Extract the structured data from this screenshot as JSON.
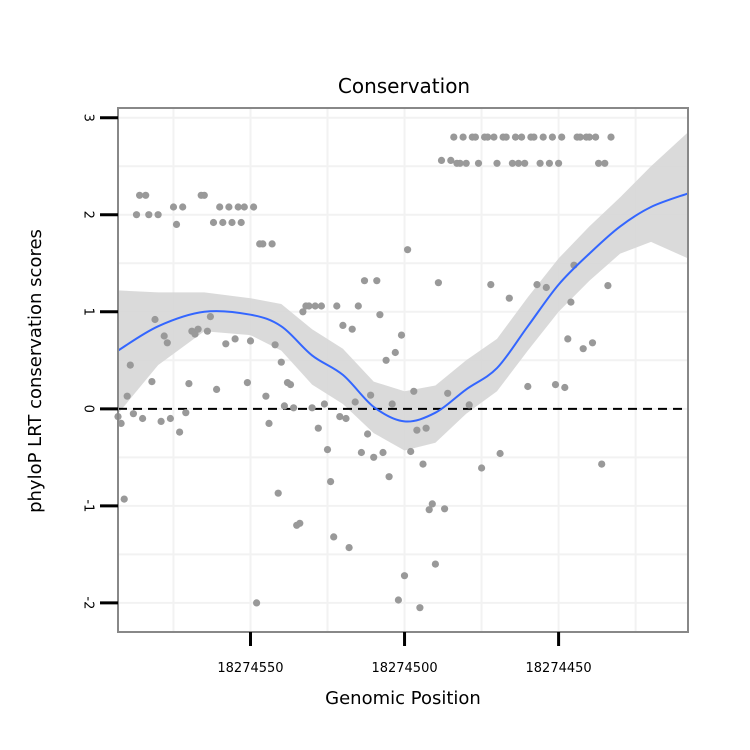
{
  "chart_data": {
    "type": "scatter",
    "title": "Conservation",
    "xlabel": "Genomic Position",
    "ylabel": "phyloP LRT conservation scores",
    "x_reversed": true,
    "xlim": [
      18274593,
      18274408
    ],
    "ylim": [
      -2.3,
      3.1
    ],
    "x_ticks": [
      {
        "value": 18274550,
        "label": "18274550"
      },
      {
        "value": 18274500,
        "label": "18274500"
      },
      {
        "value": 18274450,
        "label": "18274450"
      }
    ],
    "y_ticks": [
      {
        "value": -2,
        "label": "-2"
      },
      {
        "value": -1,
        "label": "-1"
      },
      {
        "value": 0,
        "label": "0"
      },
      {
        "value": 1,
        "label": "1"
      },
      {
        "value": 2,
        "label": "2"
      },
      {
        "value": 3,
        "label": "3"
      }
    ],
    "grid": true,
    "reference_line": {
      "y": 0,
      "style": "dashed"
    },
    "colors": {
      "points": "#999999",
      "smooth": "#3366FF",
      "ribbon": "#d6d6d6",
      "panel_border": "#888888",
      "grid": "#f2f2f2"
    },
    "points": [
      [
        18274593,
        -0.08
      ],
      [
        18274592,
        -0.15
      ],
      [
        18274591,
        -0.93
      ],
      [
        18274590,
        0.13
      ],
      [
        18274589,
        0.45
      ],
      [
        18274588,
        -0.05
      ],
      [
        18274587,
        2.0
      ],
      [
        18274586,
        2.2
      ],
      [
        18274585,
        -0.1
      ],
      [
        18274584,
        2.2
      ],
      [
        18274583,
        2.0
      ],
      [
        18274582,
        0.28
      ],
      [
        18274581,
        0.92
      ],
      [
        18274580,
        2.0
      ],
      [
        18274579,
        -0.13
      ],
      [
        18274578,
        0.75
      ],
      [
        18274577,
        0.68
      ],
      [
        18274576,
        -0.1
      ],
      [
        18274575,
        2.08
      ],
      [
        18274574,
        1.9
      ],
      [
        18274573,
        -0.24
      ],
      [
        18274572,
        2.08
      ],
      [
        18274571,
        -0.04
      ],
      [
        18274570,
        0.26
      ],
      [
        18274569,
        0.8
      ],
      [
        18274568,
        0.77
      ],
      [
        18274567,
        0.82
      ],
      [
        18274566,
        2.2
      ],
      [
        18274565,
        2.2
      ],
      [
        18274564,
        0.8
      ],
      [
        18274563,
        0.95
      ],
      [
        18274562,
        1.92
      ],
      [
        18274561,
        0.2
      ],
      [
        18274560,
        2.08
      ],
      [
        18274559,
        1.92
      ],
      [
        18274558,
        0.67
      ],
      [
        18274557,
        2.08
      ],
      [
        18274556,
        1.92
      ],
      [
        18274555,
        0.72
      ],
      [
        18274554,
        2.08
      ],
      [
        18274553,
        1.92
      ],
      [
        18274552,
        2.08
      ],
      [
        18274551,
        0.27
      ],
      [
        18274550,
        0.7
      ],
      [
        18274549,
        2.08
      ],
      [
        18274548,
        -2.0
      ],
      [
        18274547,
        1.7
      ],
      [
        18274546,
        1.7
      ],
      [
        18274545,
        0.13
      ],
      [
        18274544,
        -0.15
      ],
      [
        18274543,
        1.7
      ],
      [
        18274542,
        0.66
      ],
      [
        18274541,
        -0.87
      ],
      [
        18274540,
        0.48
      ],
      [
        18274539,
        0.03
      ],
      [
        18274538,
        0.27
      ],
      [
        18274537,
        0.25
      ],
      [
        18274536,
        0.01
      ],
      [
        18274535,
        -1.2
      ],
      [
        18274534,
        -1.18
      ],
      [
        18274533,
        1.0
      ],
      [
        18274532,
        1.06
      ],
      [
        18274531,
        1.06
      ],
      [
        18274530,
        0.01
      ],
      [
        18274529,
        1.06
      ],
      [
        18274528,
        -0.2
      ],
      [
        18274527,
        1.06
      ],
      [
        18274526,
        0.05
      ],
      [
        18274525,
        -0.42
      ],
      [
        18274524,
        -0.75
      ],
      [
        18274523,
        -1.32
      ],
      [
        18274522,
        1.06
      ],
      [
        18274521,
        -0.08
      ],
      [
        18274520,
        0.86
      ],
      [
        18274519,
        -0.1
      ],
      [
        18274518,
        -1.43
      ],
      [
        18274517,
        0.82
      ],
      [
        18274516,
        0.07
      ],
      [
        18274515,
        1.06
      ],
      [
        18274514,
        -0.45
      ],
      [
        18274513,
        1.32
      ],
      [
        18274512,
        -0.26
      ],
      [
        18274511,
        0.14
      ],
      [
        18274510,
        -0.5
      ],
      [
        18274509,
        1.32
      ],
      [
        18274508,
        0.97
      ],
      [
        18274507,
        -0.45
      ],
      [
        18274506,
        0.5
      ],
      [
        18274505,
        -0.7
      ],
      [
        18274504,
        0.05
      ],
      [
        18274503,
        0.58
      ],
      [
        18274502,
        -1.97
      ],
      [
        18274501,
        0.76
      ],
      [
        18274500,
        -1.72
      ],
      [
        18274499,
        1.64
      ],
      [
        18274498,
        -0.44
      ],
      [
        18274497,
        0.18
      ],
      [
        18274496,
        -0.22
      ],
      [
        18274495,
        -2.05
      ],
      [
        18274494,
        -0.57
      ],
      [
        18274493,
        -0.2
      ],
      [
        18274492,
        -1.04
      ],
      [
        18274491,
        -0.98
      ],
      [
        18274490,
        -1.6
      ],
      [
        18274489,
        1.3
      ],
      [
        18274488,
        2.56
      ],
      [
        18274487,
        -1.03
      ],
      [
        18274486,
        0.16
      ],
      [
        18274485,
        2.56
      ],
      [
        18274484,
        2.8
      ],
      [
        18274483,
        2.53
      ],
      [
        18274482,
        2.53
      ],
      [
        18274481,
        2.8
      ],
      [
        18274480,
        2.53
      ],
      [
        18274479,
        0.04
      ],
      [
        18274478,
        2.8
      ],
      [
        18274477,
        2.8
      ],
      [
        18274476,
        2.53
      ],
      [
        18274475,
        -0.61
      ],
      [
        18274474,
        2.8
      ],
      [
        18274473,
        2.8
      ],
      [
        18274472,
        1.28
      ],
      [
        18274471,
        2.8
      ],
      [
        18274470,
        2.53
      ],
      [
        18274469,
        -0.46
      ],
      [
        18274468,
        2.8
      ],
      [
        18274467,
        2.8
      ],
      [
        18274466,
        1.14
      ],
      [
        18274465,
        2.53
      ],
      [
        18274464,
        2.8
      ],
      [
        18274463,
        2.53
      ],
      [
        18274462,
        2.8
      ],
      [
        18274461,
        2.53
      ],
      [
        18274460,
        0.23
      ],
      [
        18274459,
        2.8
      ],
      [
        18274458,
        2.8
      ],
      [
        18274457,
        1.28
      ],
      [
        18274456,
        2.53
      ],
      [
        18274455,
        2.8
      ],
      [
        18274454,
        1.25
      ],
      [
        18274453,
        2.53
      ],
      [
        18274452,
        2.8
      ],
      [
        18274451,
        0.25
      ],
      [
        18274450,
        2.53
      ],
      [
        18274449,
        2.8
      ],
      [
        18274448,
        0.22
      ],
      [
        18274447,
        0.72
      ],
      [
        18274446,
        1.1
      ],
      [
        18274445,
        1.48
      ],
      [
        18274444,
        2.8
      ],
      [
        18274443,
        2.8
      ],
      [
        18274442,
        0.62
      ],
      [
        18274441,
        2.8
      ],
      [
        18274440,
        2.8
      ],
      [
        18274439,
        0.68
      ],
      [
        18274438,
        2.8
      ],
      [
        18274437,
        2.53
      ],
      [
        18274436,
        -0.57
      ],
      [
        18274435,
        2.53
      ],
      [
        18274434,
        1.27
      ],
      [
        18274433,
        2.8
      ]
    ],
    "smooth": [
      {
        "x": 18274593,
        "y": 0.6,
        "lo": -0.05,
        "hi": 1.22
      },
      {
        "x": 18274580,
        "y": 0.85,
        "lo": 0.45,
        "hi": 1.2
      },
      {
        "x": 18274565,
        "y": 1.0,
        "lo": 0.8,
        "hi": 1.2
      },
      {
        "x": 18274550,
        "y": 0.97,
        "lo": 0.76,
        "hi": 1.14
      },
      {
        "x": 18274540,
        "y": 0.85,
        "lo": 0.6,
        "hi": 1.08
      },
      {
        "x": 18274530,
        "y": 0.55,
        "lo": 0.25,
        "hi": 0.82
      },
      {
        "x": 18274520,
        "y": 0.35,
        "lo": 0.05,
        "hi": 0.62
      },
      {
        "x": 18274510,
        "y": 0.02,
        "lo": -0.25,
        "hi": 0.28
      },
      {
        "x": 18274500,
        "y": -0.13,
        "lo": -0.43,
        "hi": 0.18
      },
      {
        "x": 18274490,
        "y": -0.04,
        "lo": -0.35,
        "hi": 0.24
      },
      {
        "x": 18274480,
        "y": 0.2,
        "lo": -0.05,
        "hi": 0.5
      },
      {
        "x": 18274470,
        "y": 0.42,
        "lo": 0.18,
        "hi": 0.72
      },
      {
        "x": 18274460,
        "y": 0.85,
        "lo": 0.6,
        "hi": 1.15
      },
      {
        "x": 18274450,
        "y": 1.28,
        "lo": 1.0,
        "hi": 1.55
      },
      {
        "x": 18274440,
        "y": 1.6,
        "lo": 1.32,
        "hi": 1.88
      },
      {
        "x": 18274430,
        "y": 1.88,
        "lo": 1.6,
        "hi": 2.18
      },
      {
        "x": 18274420,
        "y": 2.08,
        "lo": 1.72,
        "hi": 2.5
      },
      {
        "x": 18274408,
        "y": 2.22,
        "lo": 1.55,
        "hi": 2.85
      }
    ]
  }
}
